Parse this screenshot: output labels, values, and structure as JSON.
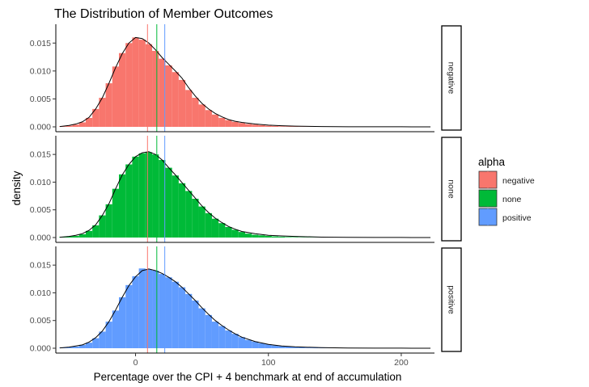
{
  "chart_data": {
    "type": "histogram-density-facets",
    "title": "The Distribution of Member Outcomes",
    "xlabel": "Percentage over the CPI + 4 benchmark at end of accumulation",
    "ylabel": "density",
    "xlim": [
      -60,
      225
    ],
    "x_ticks": [
      0,
      100,
      200
    ],
    "ylim": [
      0,
      0.0175
    ],
    "y_ticks": [
      "0.000",
      "0.005",
      "0.010",
      "0.015"
    ],
    "grid": false,
    "legend": {
      "title": "alpha",
      "placement": "right",
      "entries": [
        "negative",
        "none",
        "positive"
      ]
    },
    "colors": {
      "negative": "#F8766D",
      "none": "#00BA38",
      "positive": "#619CFF",
      "line_negative": "#F8766D",
      "line_none": "#00BA38",
      "line_positive": "#619CFF"
    },
    "vertical_lines": {
      "negative": 9,
      "none": 16,
      "positive": 22
    },
    "bin_width": 5,
    "facets": [
      {
        "label": "negative",
        "bins_x": [
          -55,
          -50,
          -45,
          -40,
          -35,
          -30,
          -25,
          -20,
          -15,
          -10,
          -5,
          0,
          5,
          10,
          15,
          20,
          25,
          30,
          35,
          40,
          45,
          50,
          55,
          60,
          65,
          70,
          75,
          80,
          85,
          90,
          95,
          100,
          105,
          110,
          115,
          120,
          125,
          130,
          135,
          140,
          145,
          150,
          155,
          160,
          165,
          170,
          175,
          180,
          185,
          190,
          195,
          200,
          205,
          210,
          215
        ],
        "bins_y": [
          0.0001,
          0.0002,
          0.0004,
          0.0008,
          0.0016,
          0.0032,
          0.0052,
          0.0078,
          0.0108,
          0.0132,
          0.015,
          0.016,
          0.0156,
          0.0148,
          0.0136,
          0.0122,
          0.011,
          0.0098,
          0.0084,
          0.0066,
          0.0052,
          0.004,
          0.003,
          0.0022,
          0.0016,
          0.0012,
          0.0009,
          0.0007,
          0.0005,
          0.0004,
          0.0003,
          0.0002,
          0.00015,
          0.0001,
          8e-05,
          6e-05,
          4e-05,
          3e-05,
          2e-05,
          2e-05,
          1e-05,
          1e-05,
          1e-05,
          1e-05,
          1e-05,
          1e-05,
          1e-05,
          1e-05,
          1e-05,
          1e-05,
          1e-05,
          1e-05,
          1e-05,
          1e-05,
          1e-05
        ],
        "density_x": [
          -57,
          -50,
          -45,
          -40,
          -35,
          -30,
          -25,
          -20,
          -15,
          -10,
          -5,
          0,
          5,
          10,
          15,
          20,
          25,
          30,
          35,
          40,
          45,
          50,
          55,
          60,
          65,
          70,
          75,
          80,
          90,
          100,
          110,
          120,
          140,
          160,
          180,
          200,
          222
        ],
        "density_y": [
          5e-05,
          0.00025,
          0.0005,
          0.0009,
          0.0017,
          0.0032,
          0.0052,
          0.0078,
          0.0106,
          0.0131,
          0.015,
          0.016,
          0.0158,
          0.015,
          0.0138,
          0.0124,
          0.0112,
          0.01,
          0.0087,
          0.007,
          0.0055,
          0.0042,
          0.0032,
          0.0024,
          0.0018,
          0.0013,
          0.001,
          0.0008,
          0.0005,
          0.0003,
          0.0002,
          0.00012,
          5e-05,
          2e-05,
          1e-05,
          1e-05,
          0
        ]
      },
      {
        "label": "none",
        "bins_x": [
          -55,
          -50,
          -45,
          -40,
          -35,
          -30,
          -25,
          -20,
          -15,
          -10,
          -5,
          0,
          5,
          10,
          15,
          20,
          25,
          30,
          35,
          40,
          45,
          50,
          55,
          60,
          65,
          70,
          75,
          80,
          85,
          90,
          95,
          100,
          105,
          110,
          115,
          120,
          125,
          130,
          135,
          140,
          145,
          150,
          155,
          160,
          165,
          170,
          175,
          180,
          185,
          190,
          195,
          200,
          205,
          210,
          215
        ],
        "bins_y": [
          0.0001,
          0.0002,
          0.0003,
          0.0006,
          0.0012,
          0.0022,
          0.004,
          0.006,
          0.0088,
          0.0114,
          0.0132,
          0.0146,
          0.0152,
          0.0154,
          0.015,
          0.014,
          0.0126,
          0.0112,
          0.0098,
          0.0084,
          0.007,
          0.0056,
          0.0044,
          0.0034,
          0.0026,
          0.0019,
          0.0014,
          0.001,
          0.0007,
          0.0005,
          0.0004,
          0.0003,
          0.0002,
          0.00015,
          0.0001,
          8e-05,
          5e-05,
          4e-05,
          3e-05,
          2e-05,
          1e-05,
          1e-05,
          1e-05,
          1e-05,
          1e-05,
          1e-05,
          1e-05,
          1e-05,
          1e-05,
          1e-05,
          1e-05,
          1e-05,
          1e-05,
          1e-05,
          1e-05
        ],
        "density_x": [
          -57,
          -50,
          -45,
          -40,
          -35,
          -30,
          -25,
          -20,
          -15,
          -10,
          -5,
          0,
          5,
          10,
          15,
          20,
          25,
          30,
          35,
          40,
          45,
          50,
          55,
          60,
          65,
          70,
          75,
          80,
          90,
          100,
          110,
          120,
          140,
          160,
          180,
          200,
          222
        ],
        "density_y": [
          5e-05,
          0.0002,
          0.0004,
          0.0007,
          0.0013,
          0.0023,
          0.004,
          0.0061,
          0.0088,
          0.0113,
          0.0132,
          0.0146,
          0.0153,
          0.0155,
          0.015,
          0.014,
          0.0126,
          0.0113,
          0.0099,
          0.0085,
          0.0071,
          0.0057,
          0.0045,
          0.0035,
          0.0027,
          0.002,
          0.0015,
          0.0011,
          0.0007,
          0.0004,
          0.0003,
          0.0002,
          8e-05,
          3e-05,
          1e-05,
          1e-05,
          0
        ]
      },
      {
        "label": "positive",
        "bins_x": [
          -55,
          -50,
          -45,
          -40,
          -35,
          -30,
          -25,
          -20,
          -15,
          -10,
          -5,
          0,
          5,
          10,
          15,
          20,
          25,
          30,
          35,
          40,
          45,
          50,
          55,
          60,
          65,
          70,
          75,
          80,
          85,
          90,
          95,
          100,
          105,
          110,
          115,
          120,
          125,
          130,
          135,
          140,
          145,
          150,
          155,
          160,
          165,
          170,
          175,
          180,
          185,
          190,
          195,
          200,
          205,
          210,
          215
        ],
        "bins_y": [
          0.0001,
          0.0002,
          0.0003,
          0.0006,
          0.001,
          0.0018,
          0.003,
          0.0048,
          0.0068,
          0.0092,
          0.0114,
          0.013,
          0.0144,
          0.0142,
          0.014,
          0.0134,
          0.0128,
          0.012,
          0.011,
          0.0098,
          0.0086,
          0.0072,
          0.006,
          0.0048,
          0.004,
          0.0032,
          0.0026,
          0.002,
          0.0015,
          0.0012,
          0.0009,
          0.0007,
          0.0005,
          0.0004,
          0.0003,
          0.0002,
          0.00015,
          0.0001,
          8e-05,
          6e-05,
          4e-05,
          3e-05,
          2e-05,
          2e-05,
          1e-05,
          1e-05,
          1e-05,
          1e-05,
          1e-05,
          1e-05,
          1e-05,
          1e-05,
          1e-05,
          1e-05,
          1e-05
        ],
        "density_x": [
          -57,
          -50,
          -45,
          -40,
          -35,
          -30,
          -25,
          -20,
          -15,
          -10,
          -5,
          0,
          5,
          10,
          15,
          20,
          25,
          30,
          35,
          40,
          45,
          50,
          55,
          60,
          65,
          70,
          75,
          80,
          90,
          100,
          110,
          120,
          140,
          160,
          180,
          200,
          222
        ],
        "density_y": [
          5e-05,
          0.0002,
          0.0004,
          0.0006,
          0.0011,
          0.0019,
          0.0031,
          0.0048,
          0.0069,
          0.0092,
          0.0113,
          0.0129,
          0.014,
          0.0143,
          0.014,
          0.0135,
          0.0128,
          0.012,
          0.011,
          0.0098,
          0.0086,
          0.0073,
          0.0061,
          0.005,
          0.0041,
          0.0033,
          0.0026,
          0.002,
          0.0012,
          0.0007,
          0.0004,
          0.00025,
          0.0001,
          4e-05,
          2e-05,
          1e-05,
          0
        ]
      }
    ]
  }
}
